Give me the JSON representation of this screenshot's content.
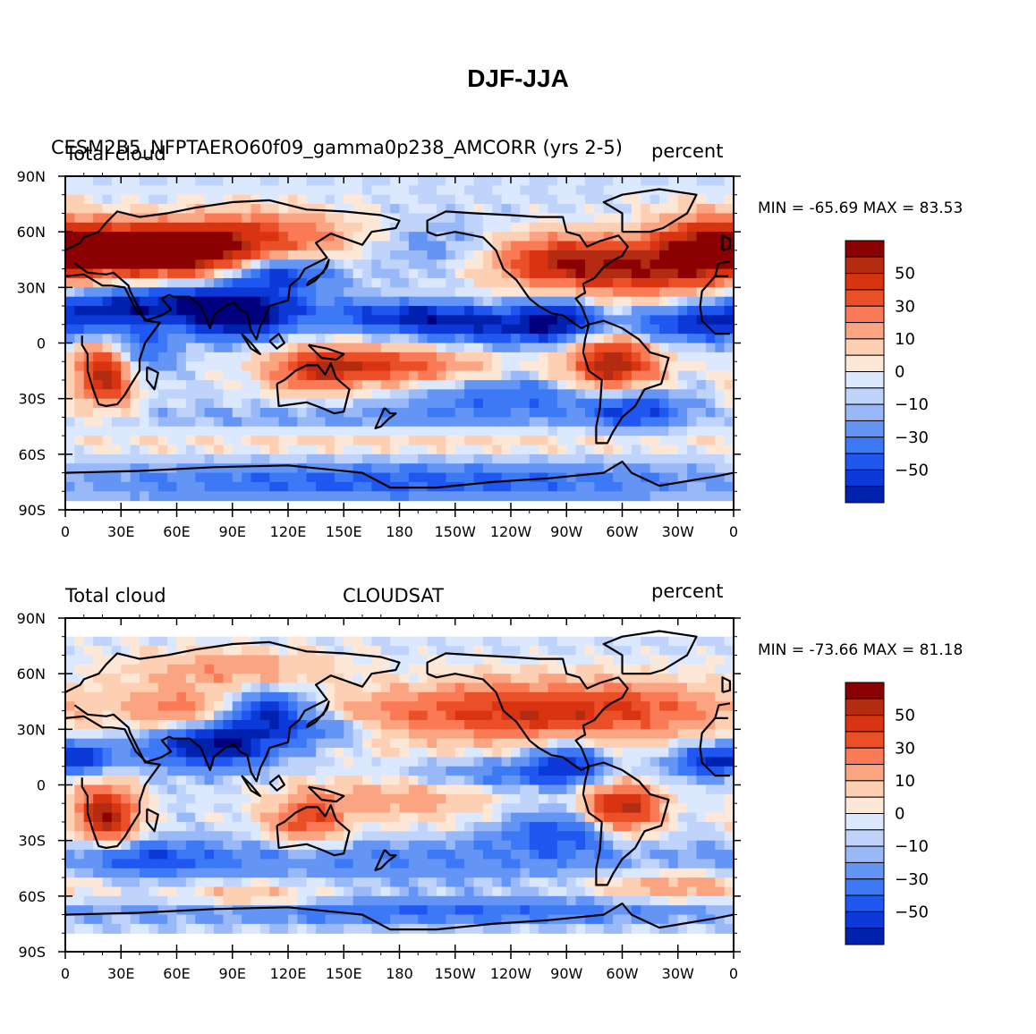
{
  "page_title": "DJF-JJA",
  "colors": {
    "palette": [
      "#00007f",
      "#0021ad",
      "#0c39d8",
      "#1f57f0",
      "#3d79f5",
      "#6495f5",
      "#98b8f8",
      "#c0d4fb",
      "#dbe8fd",
      "#fde8d8",
      "#fdcfb3",
      "#fba482",
      "#f97a55",
      "#eb4f27",
      "#d93411",
      "#b32b10",
      "#8b0000"
    ],
    "land_outline": "#000000"
  },
  "chart_data": [
    {
      "type": "heatmap",
      "panel": "top",
      "left_label": "Total cloud",
      "center_label": "CESM2B5_NFPTAERO60f09_gamma0p238_AMCORR (yrs 2-5)",
      "right_label": "percent",
      "stats": "MIN = -65.69 MAX = 83.53",
      "x_ticks": [
        "0",
        "30E",
        "60E",
        "90E",
        "120E",
        "150E",
        "180",
        "150W",
        "120W",
        "90W",
        "60W",
        "30W",
        "0"
      ],
      "y_ticks": [
        "90N",
        "60N",
        "30N",
        "0",
        "30S",
        "60S",
        "90S"
      ],
      "xlim": [
        0,
        360
      ],
      "ylim": [
        -90,
        90
      ],
      "colorbar_levels": [
        -70,
        -60,
        -50,
        -40,
        -30,
        -20,
        -10,
        -5,
        0,
        5,
        10,
        20,
        30,
        40,
        50,
        60,
        70
      ],
      "colorbar_labels": [
        "50",
        "30",
        "10",
        "0",
        "-10",
        "-30",
        "-50"
      ],
      "features": [
        {
          "lon": 20,
          "lat": 52,
          "v": 60,
          "sx": 30,
          "sy": 10
        },
        {
          "lon": 62,
          "lat": 47,
          "v": 70,
          "sx": 28,
          "sy": 10
        },
        {
          "lon": 105,
          "lat": 58,
          "v": 45,
          "sx": 35,
          "sy": 10
        },
        {
          "lon": 115,
          "lat": 38,
          "v": -45,
          "sx": 20,
          "sy": 6
        },
        {
          "lon": 75,
          "lat": 23,
          "v": -50,
          "sx": 40,
          "sy": 9
        },
        {
          "lon": 20,
          "lat": 18,
          "v": -35,
          "sx": 25,
          "sy": 7
        },
        {
          "lon": 93,
          "lat": 13,
          "v": -55,
          "sx": 20,
          "sy": 8
        },
        {
          "lon": 22,
          "lat": -17,
          "v": 70,
          "sx": 12,
          "sy": 12
        },
        {
          "lon": 40,
          "lat": -5,
          "v": -35,
          "sx": 12,
          "sy": 10
        },
        {
          "lon": 133,
          "lat": -15,
          "v": 40,
          "sx": 18,
          "sy": 9
        },
        {
          "lon": 175,
          "lat": -12,
          "v": 50,
          "sx": 35,
          "sy": 8
        },
        {
          "lon": 185,
          "lat": 15,
          "v": -40,
          "sx": 30,
          "sy": 5
        },
        {
          "lon": 235,
          "lat": 8,
          "v": -45,
          "sx": 45,
          "sy": 7
        },
        {
          "lon": 265,
          "lat": 15,
          "v": -40,
          "sx": 15,
          "sy": 8
        },
        {
          "lon": 295,
          "lat": -12,
          "v": 70,
          "sx": 18,
          "sy": 13
        },
        {
          "lon": 305,
          "lat": -35,
          "v": -45,
          "sx": 18,
          "sy": 8
        },
        {
          "lon": 240,
          "lat": -28,
          "v": -30,
          "sx": 40,
          "sy": 7
        },
        {
          "lon": 310,
          "lat": 40,
          "v": 60,
          "sx": 40,
          "sy": 11
        },
        {
          "lon": 260,
          "lat": 45,
          "v": 40,
          "sx": 25,
          "sy": 10
        },
        {
          "lon": 340,
          "lat": 10,
          "v": -45,
          "sx": 25,
          "sy": 7
        },
        {
          "lon": 345,
          "lat": 55,
          "v": 40,
          "sx": 20,
          "sy": 12
        },
        {
          "lon": 200,
          "lat": 52,
          "v": -15,
          "sx": 25,
          "sy": 10
        },
        {
          "lon": 180,
          "lat": -75,
          "v": -35,
          "sx": 120,
          "sy": 7
        },
        {
          "lon": 180,
          "lat": -53,
          "v": 12,
          "sx": 150,
          "sy": 5
        },
        {
          "lon": 180,
          "lat": -40,
          "v": -15,
          "sx": 100,
          "sy": 5
        }
      ]
    },
    {
      "type": "heatmap",
      "panel": "bottom",
      "left_label": "Total cloud",
      "center_label": "CLOUDSAT",
      "right_label": "percent",
      "stats": "MIN = -73.66 MAX = 81.18",
      "x_ticks": [
        "0",
        "30E",
        "60E",
        "90E",
        "120E",
        "150E",
        "180",
        "150W",
        "120W",
        "90W",
        "60W",
        "30W",
        "0"
      ],
      "y_ticks": [
        "90N",
        "60N",
        "30N",
        "0",
        "30S",
        "60S",
        "90S"
      ],
      "xlim": [
        0,
        360
      ],
      "ylim": [
        -90,
        90
      ],
      "colorbar_levels": [
        -70,
        -60,
        -50,
        -40,
        -30,
        -20,
        -10,
        -5,
        0,
        5,
        10,
        20,
        30,
        40,
        50,
        60,
        70
      ],
      "colorbar_labels": [
        "50",
        "30",
        "10",
        "0",
        "-10",
        "-30",
        "-50"
      ],
      "features": [
        {
          "lon": 22,
          "lat": -16,
          "v": 70,
          "sx": 12,
          "sy": 12
        },
        {
          "lon": 300,
          "lat": -13,
          "v": 70,
          "sx": 15,
          "sy": 11
        },
        {
          "lon": 130,
          "lat": -20,
          "v": 45,
          "sx": 15,
          "sy": 9
        },
        {
          "lon": 80,
          "lat": 22,
          "v": -65,
          "sx": 25,
          "sy": 9
        },
        {
          "lon": 110,
          "lat": 40,
          "v": -45,
          "sx": 15,
          "sy": 9
        },
        {
          "lon": 10,
          "lat": 15,
          "v": -40,
          "sx": 15,
          "sy": 6
        },
        {
          "lon": 345,
          "lat": 13,
          "v": -40,
          "sx": 15,
          "sy": 6
        },
        {
          "lon": 230,
          "lat": 5,
          "v": -30,
          "sx": 50,
          "sy": 6
        },
        {
          "lon": 270,
          "lat": 13,
          "v": -40,
          "sx": 15,
          "sy": 8
        },
        {
          "lon": 300,
          "lat": 40,
          "v": 45,
          "sx": 45,
          "sy": 12
        },
        {
          "lon": 60,
          "lat": 40,
          "v": 40,
          "sx": 20,
          "sy": 8
        },
        {
          "lon": 230,
          "lat": 40,
          "v": 40,
          "sx": 35,
          "sy": 12
        },
        {
          "lon": 170,
          "lat": 35,
          "v": 30,
          "sx": 25,
          "sy": 10
        },
        {
          "lon": 180,
          "lat": -5,
          "v": 30,
          "sx": 40,
          "sy": 10
        },
        {
          "lon": 150,
          "lat": 30,
          "v": -30,
          "sx": 25,
          "sy": 6
        },
        {
          "lon": 270,
          "lat": -25,
          "v": -40,
          "sx": 25,
          "sy": 8
        },
        {
          "lon": 180,
          "lat": -40,
          "v": -20,
          "sx": 120,
          "sy": 8
        },
        {
          "lon": 40,
          "lat": -40,
          "v": -30,
          "sx": 30,
          "sy": 7
        },
        {
          "lon": 330,
          "lat": -55,
          "v": 30,
          "sx": 30,
          "sy": 6
        },
        {
          "lon": 100,
          "lat": -60,
          "v": 25,
          "sx": 30,
          "sy": 5
        },
        {
          "lon": 200,
          "lat": -68,
          "v": -30,
          "sx": 120,
          "sy": 5
        },
        {
          "lon": 90,
          "lat": 62,
          "v": 30,
          "sx": 40,
          "sy": 8
        }
      ]
    }
  ]
}
